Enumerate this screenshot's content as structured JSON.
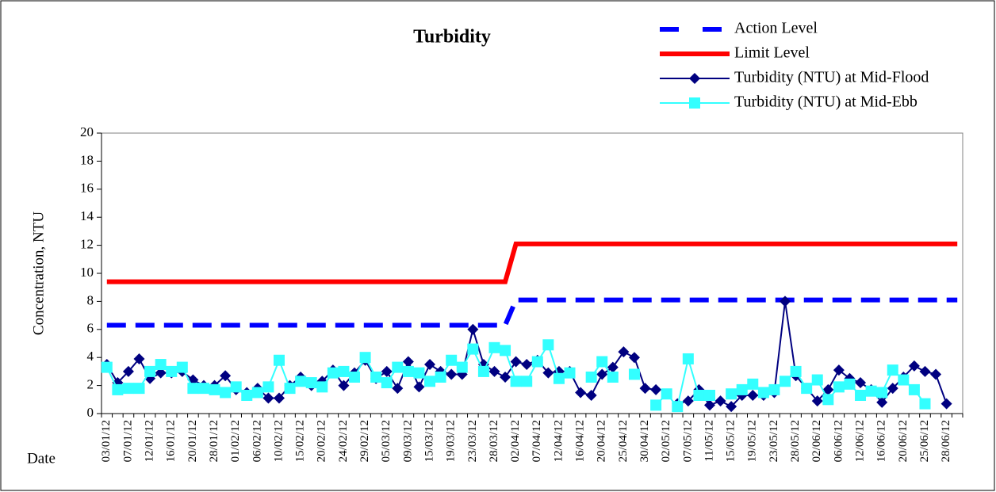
{
  "chart_data": {
    "type": "line",
    "title": "Turbidity",
    "y_label": "Concentration, NTU",
    "x_label": "Date",
    "categories": [
      "03/01/12",
      null,
      "07/01/12",
      null,
      "12/01/12",
      null,
      "16/01/12",
      null,
      "20/01/12",
      null,
      "28/01/12",
      null,
      "01/02/12",
      null,
      "06/02/12",
      null,
      "10/02/12",
      null,
      "15/02/12",
      null,
      "20/02/12",
      null,
      "24/02/12",
      null,
      "29/02/12",
      null,
      "05/03/12",
      null,
      "09/03/12",
      null,
      "15/03/12",
      null,
      "19/03/12",
      null,
      "23/03/12",
      null,
      "28/03/12",
      null,
      "02/04/12",
      null,
      "07/04/12",
      null,
      "12/04/12",
      null,
      "16/04/12",
      null,
      "20/04/12",
      null,
      "25/04/12",
      null,
      "30/04/12",
      null,
      "02/05/12",
      null,
      "07/05/12",
      null,
      "11/05/12",
      null,
      "15/05/12",
      null,
      "19/05/12",
      null,
      "23/05/12",
      null,
      "28/05/12",
      null,
      "02/06/12",
      null,
      "06/06/12",
      null,
      "12/06/12",
      null,
      "16/06/12",
      null,
      "20/06/12",
      null,
      "25/06/12",
      null,
      "28/06/12",
      null
    ],
    "ylim": [
      0,
      20
    ],
    "yticks": [
      0,
      2,
      4,
      6,
      8,
      10,
      12,
      14,
      16,
      18,
      20
    ],
    "series": [
      {
        "name": "Action Level",
        "color": "#0000ff",
        "dash": true,
        "marker": "none",
        "values": [
          6.3,
          6.3,
          6.3,
          6.3,
          6.3,
          6.3,
          6.3,
          6.3,
          6.3,
          6.3,
          6.3,
          6.3,
          6.3,
          6.3,
          6.3,
          6.3,
          6.3,
          6.3,
          6.3,
          6.3,
          6.3,
          6.3,
          6.3,
          6.3,
          6.3,
          6.3,
          6.3,
          6.3,
          6.3,
          6.3,
          6.3,
          6.3,
          6.3,
          6.3,
          6.3,
          6.3,
          6.3,
          6.3,
          8.1,
          8.1,
          8.1,
          8.1,
          8.1,
          8.1,
          8.1,
          8.1,
          8.1,
          8.1,
          8.1,
          8.1,
          8.1,
          8.1,
          8.1,
          8.1,
          8.1,
          8.1,
          8.1,
          8.1,
          8.1,
          8.1,
          8.1,
          8.1,
          8.1,
          8.1,
          8.1,
          8.1,
          8.1,
          8.1,
          8.1,
          8.1,
          8.1,
          8.1,
          8.1,
          8.1,
          8.1,
          8.1,
          8.1,
          8.1,
          8.1,
          8.1
        ]
      },
      {
        "name": "Limit Level",
        "color": "#ff0000",
        "dash": false,
        "marker": "none",
        "values": [
          9.4,
          9.4,
          9.4,
          9.4,
          9.4,
          9.4,
          9.4,
          9.4,
          9.4,
          9.4,
          9.4,
          9.4,
          9.4,
          9.4,
          9.4,
          9.4,
          9.4,
          9.4,
          9.4,
          9.4,
          9.4,
          9.4,
          9.4,
          9.4,
          9.4,
          9.4,
          9.4,
          9.4,
          9.4,
          9.4,
          9.4,
          9.4,
          9.4,
          9.4,
          9.4,
          9.4,
          9.4,
          9.4,
          12.1,
          12.1,
          12.1,
          12.1,
          12.1,
          12.1,
          12.1,
          12.1,
          12.1,
          12.1,
          12.1,
          12.1,
          12.1,
          12.1,
          12.1,
          12.1,
          12.1,
          12.1,
          12.1,
          12.1,
          12.1,
          12.1,
          12.1,
          12.1,
          12.1,
          12.1,
          12.1,
          12.1,
          12.1,
          12.1,
          12.1,
          12.1,
          12.1,
          12.1,
          12.1,
          12.1,
          12.1,
          12.1,
          12.1,
          12.1,
          12.1,
          12.1
        ]
      },
      {
        "name": "Turbidity (NTU) at Mid-Flood",
        "color": "#000080",
        "dash": false,
        "marker": "diamond",
        "values": [
          3.5,
          2.2,
          3.0,
          3.9,
          2.5,
          2.9,
          2.9,
          3.0,
          2.4,
          2.0,
          2.0,
          2.7,
          1.7,
          1.5,
          1.8,
          1.1,
          1.1,
          2.0,
          2.6,
          2.0,
          2.3,
          3.1,
          2.0,
          2.9,
          3.8,
          2.5,
          3.0,
          1.8,
          3.7,
          1.9,
          3.5,
          3.0,
          2.8,
          2.8,
          6.0,
          3.5,
          3.0,
          2.6,
          3.7,
          3.5,
          3.8,
          2.9,
          3.0,
          3.0,
          1.5,
          1.3,
          2.8,
          3.3,
          4.4,
          4.0,
          1.8,
          1.7,
          null,
          0.7,
          0.9,
          1.7,
          0.6,
          0.9,
          0.5,
          1.3,
          1.3,
          1.3,
          1.5,
          8.0,
          2.7,
          1.8,
          0.9,
          1.7,
          3.1,
          2.5,
          2.2,
          1.7,
          0.8,
          1.8,
          2.6,
          3.4,
          3.0,
          2.8,
          0.7,
          null
        ]
      },
      {
        "name": "Turbidity (NTU) at Mid-Ebb",
        "color": "#33ffff",
        "dash": false,
        "marker": "square",
        "values": [
          3.3,
          1.7,
          1.8,
          1.8,
          3.0,
          3.5,
          3.0,
          3.3,
          1.8,
          1.8,
          1.7,
          1.5,
          1.9,
          1.3,
          1.5,
          1.9,
          3.8,
          1.8,
          2.3,
          2.2,
          1.9,
          2.9,
          3.0,
          2.6,
          4.0,
          2.6,
          2.2,
          3.3,
          3.0,
          2.9,
          2.3,
          2.6,
          3.8,
          3.3,
          4.6,
          3.0,
          4.7,
          4.5,
          2.3,
          2.3,
          3.7,
          4.9,
          2.5,
          2.9,
          null,
          2.6,
          3.7,
          2.6,
          null,
          2.8,
          null,
          0.6,
          1.4,
          0.5,
          3.9,
          1.3,
          1.3,
          null,
          1.4,
          1.7,
          2.1,
          1.5,
          1.7,
          2.3,
          3.0,
          1.8,
          2.4,
          1.0,
          1.9,
          2.1,
          1.3,
          1.6,
          1.5,
          3.1,
          2.4,
          1.7,
          0.7,
          null,
          null,
          null
        ]
      }
    ]
  }
}
